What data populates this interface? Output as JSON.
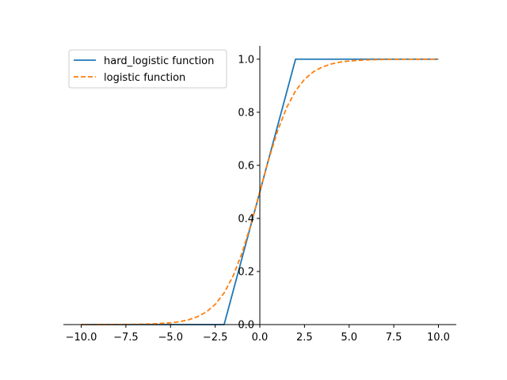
{
  "chart_data": {
    "type": "line",
    "title": "",
    "xlabel": "",
    "ylabel": "",
    "xlim": [
      -11,
      11
    ],
    "ylim": [
      0,
      1.05
    ],
    "x_ticks": [
      -10,
      -7.5,
      -5,
      -2.5,
      0,
      2.5,
      5,
      7.5,
      10
    ],
    "x_tick_labels": [
      "−10.0",
      "−7.5",
      "−5.0",
      "−2.5",
      "0.0",
      "2.5",
      "5.0",
      "7.5",
      "10.0"
    ],
    "y_ticks": [
      0,
      0.2,
      0.4,
      0.6,
      0.8,
      1.0
    ],
    "y_tick_labels": [
      "0.0",
      "0.2",
      "0.4",
      "0.6",
      "0.8",
      "1.0"
    ],
    "spines": "centered at origin",
    "grid": false,
    "legend_position": "upper-left",
    "series": [
      {
        "name": "hard_logistic function",
        "color": "#1f77b4",
        "style": "solid",
        "x": [
          -10,
          -2,
          2,
          10
        ],
        "y": [
          0,
          0,
          1,
          1
        ]
      },
      {
        "name": "logistic function",
        "color": "#ff7f0e",
        "style": "dashed",
        "x": [
          -10,
          -9,
          -8,
          -7,
          -6,
          -5,
          -4.5,
          -4,
          -3.5,
          -3,
          -2.5,
          -2,
          -1.5,
          -1,
          -0.5,
          0,
          0.5,
          1,
          1.5,
          2,
          2.5,
          3,
          3.5,
          4,
          4.5,
          5,
          6,
          7,
          8,
          9,
          10
        ],
        "y": [
          4.54e-05,
          0.000123,
          0.000335,
          0.000911,
          0.00247,
          0.00669,
          0.011,
          0.018,
          0.0293,
          0.0474,
          0.0759,
          0.1192,
          0.1824,
          0.2689,
          0.3775,
          0.5,
          0.6225,
          0.7311,
          0.8176,
          0.8808,
          0.9241,
          0.9526,
          0.9707,
          0.982,
          0.989,
          0.9933,
          0.9975,
          0.9991,
          0.99966,
          0.99988,
          0.99995
        ]
      }
    ]
  }
}
